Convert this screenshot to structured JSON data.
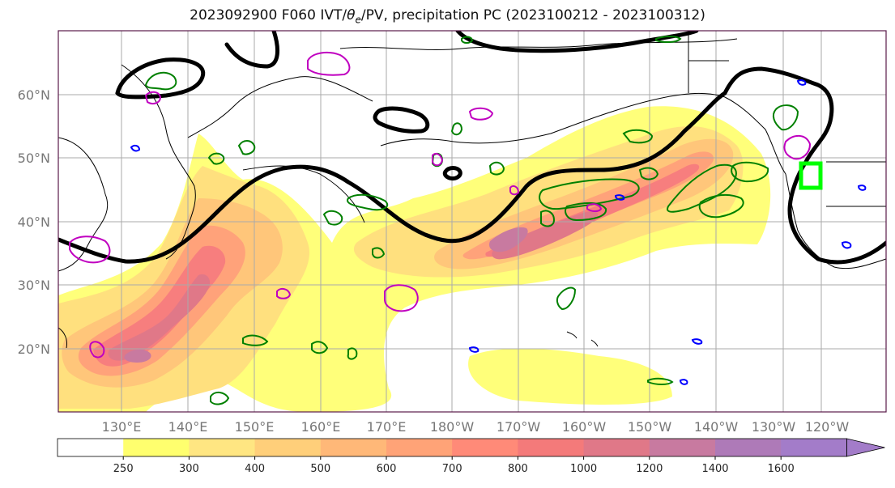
{
  "title_prefix": "2023092900 F060 IVT/",
  "title_theta": "θ",
  "title_sub": "e",
  "title_suffix": "/PV, precipitation PC (2023100212 - 2023100312)",
  "lat_labels": [
    "60°N",
    "50°N",
    "40°N",
    "30°N",
    "20°N"
  ],
  "lon_labels": [
    "130°E",
    "140°E",
    "150°E",
    "160°E",
    "170°E",
    "180°W",
    "170°W",
    "160°W",
    "150°W",
    "140°W",
    "130°W",
    "120°W"
  ],
  "colorbar": {
    "ticks": [
      "250",
      "300",
      "400",
      "500",
      "600",
      "700",
      "800",
      "1000",
      "1200",
      "1400",
      "1600"
    ],
    "colors": [
      "#ffffff",
      "#ffff6e",
      "#ffe682",
      "#ffcf7a",
      "#ffb878",
      "#ffa377",
      "#ff8a78",
      "#f47a7a",
      "#e07888",
      "#c87aa0",
      "#ae7ab8",
      "#a37cc9"
    ]
  },
  "colors": {
    "ivt_contour": "#000000",
    "theta_e": "#008000",
    "pv": "#c000c0",
    "precip_blue": "#0000ff",
    "highlight_box": "#00ff00"
  }
}
